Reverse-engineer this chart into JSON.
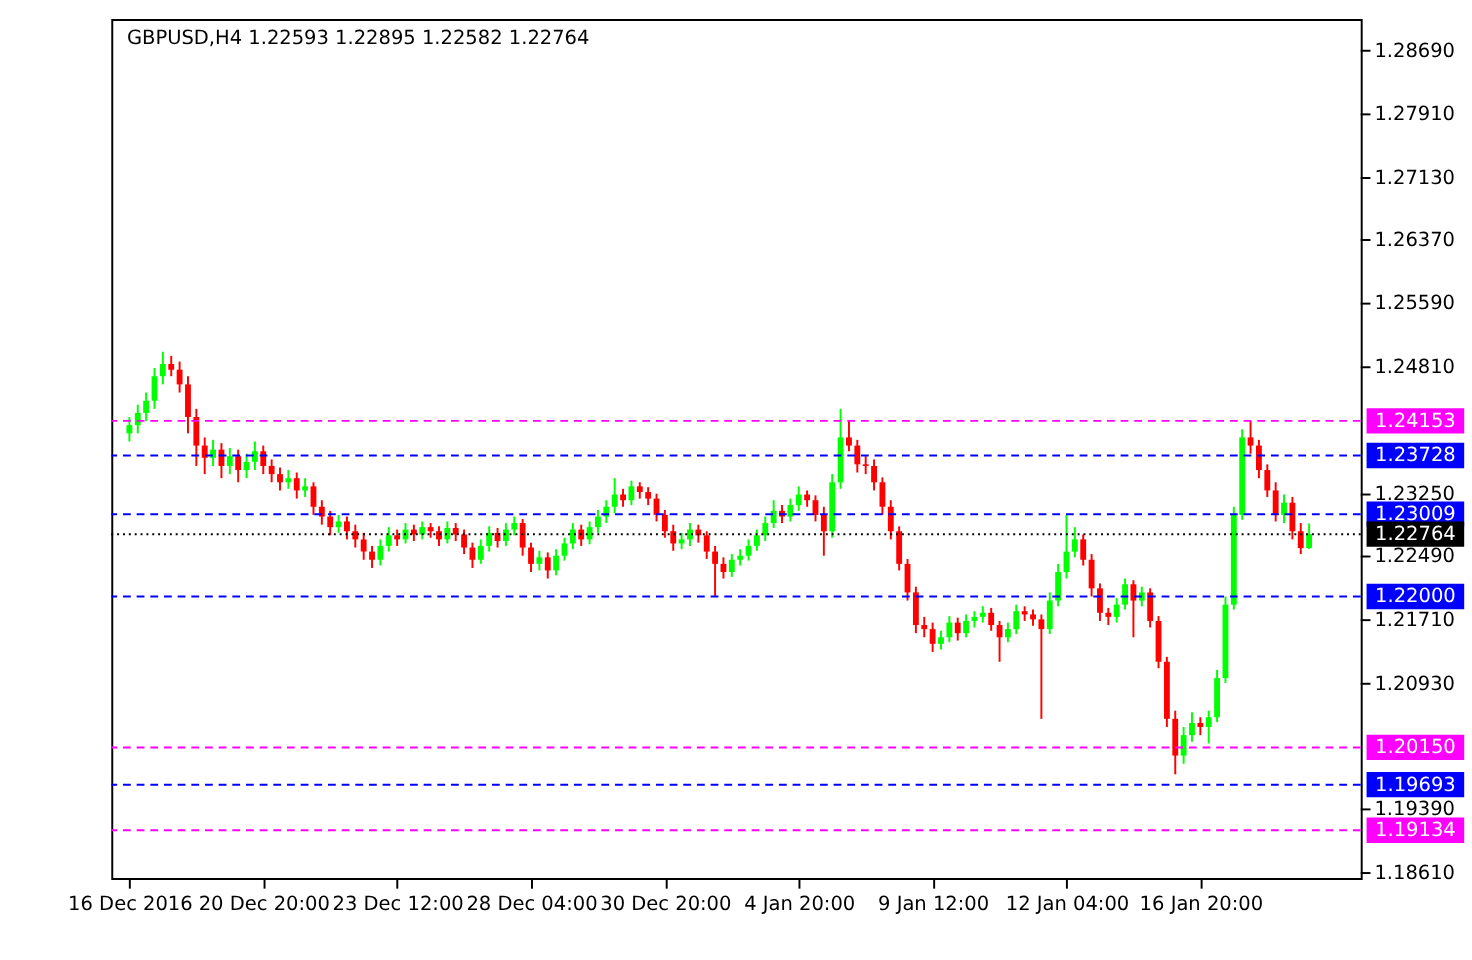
{
  "chart_data": {
    "type": "candlestick",
    "title": "GBPUSD,H4  1.22593 1.22895 1.22582 1.22764",
    "categories": [
      "16 Dec 2016",
      null,
      null,
      null,
      null,
      null,
      null,
      null,
      null,
      null,
      null,
      null,
      null,
      null,
      null,
      null,
      "20 Dec 20:00",
      null,
      null,
      null,
      null,
      null,
      null,
      null,
      null,
      null,
      null,
      null,
      null,
      null,
      null,
      null,
      "23 Dec 12:00",
      null,
      null,
      null,
      null,
      null,
      null,
      null,
      null,
      null,
      null,
      null,
      null,
      null,
      null,
      null,
      "28 Dec 04:00",
      null,
      null,
      null,
      null,
      null,
      null,
      null,
      null,
      null,
      null,
      null,
      null,
      null,
      null,
      null,
      "30 Dec 20:00",
      null,
      null,
      null,
      null,
      null,
      null,
      null,
      null,
      null,
      null,
      null,
      null,
      null,
      null,
      null,
      "4 Jan 20:00",
      null,
      null,
      null,
      null,
      null,
      null,
      null,
      null,
      null,
      null,
      null,
      null,
      null,
      null,
      null,
      "9 Jan 12:00",
      null,
      null,
      null,
      null,
      null,
      null,
      null,
      null,
      null,
      null,
      null,
      null,
      null,
      null,
      null,
      "12 Jan 04:00",
      null,
      null,
      null,
      null,
      null,
      null,
      null,
      null,
      null,
      null,
      null,
      null,
      null,
      null,
      null,
      "16 Jan 20:00",
      null,
      null,
      null,
      null,
      null,
      null,
      null,
      null,
      null,
      null,
      null,
      null,
      null
    ],
    "ohlc": [
      [
        1.24,
        1.242,
        1.239,
        1.241
      ],
      [
        1.241,
        1.2435,
        1.24,
        1.2425
      ],
      [
        1.2425,
        1.245,
        1.2415,
        1.244
      ],
      [
        1.244,
        1.248,
        1.243,
        1.247
      ],
      [
        1.247,
        1.25,
        1.246,
        1.2485
      ],
      [
        1.2485,
        1.2495,
        1.247,
        1.2478
      ],
      [
        1.2478,
        1.2488,
        1.245,
        1.246
      ],
      [
        1.246,
        1.247,
        1.24,
        1.242
      ],
      [
        1.242,
        1.243,
        1.236,
        1.2385
      ],
      [
        1.2385,
        1.2395,
        1.235,
        1.237
      ],
      [
        1.237,
        1.2392,
        1.236,
        1.238
      ],
      [
        1.238,
        1.2388,
        1.2345,
        1.236
      ],
      [
        1.236,
        1.2382,
        1.235,
        1.2372
      ],
      [
        1.2372,
        1.238,
        1.234,
        1.2355
      ],
      [
        1.2355,
        1.2375,
        1.2345,
        1.2365
      ],
      [
        1.2365,
        1.239,
        1.2355,
        1.2378
      ],
      [
        1.2378,
        1.2385,
        1.235,
        1.236
      ],
      [
        1.236,
        1.2368,
        1.234,
        1.235
      ],
      [
        1.235,
        1.2358,
        1.233,
        1.234
      ],
      [
        1.234,
        1.2355,
        1.2332,
        1.2345
      ],
      [
        1.2345,
        1.2352,
        1.232,
        1.233
      ],
      [
        1.233,
        1.2345,
        1.2322,
        1.2335
      ],
      [
        1.2335,
        1.234,
        1.23,
        1.231
      ],
      [
        1.231,
        1.2318,
        1.2288,
        1.2298
      ],
      [
        1.2298,
        1.2305,
        1.2275,
        1.2285
      ],
      [
        1.2285,
        1.23,
        1.2278,
        1.2292
      ],
      [
        1.2292,
        1.2298,
        1.227,
        1.228
      ],
      [
        1.228,
        1.2288,
        1.226,
        1.227
      ],
      [
        1.227,
        1.2278,
        1.2245,
        1.2255
      ],
      [
        1.2255,
        1.2262,
        1.2235,
        1.2245
      ],
      [
        1.2245,
        1.227,
        1.2238,
        1.2262
      ],
      [
        1.2262,
        1.2285,
        1.2255,
        1.2275
      ],
      [
        1.2275,
        1.2282,
        1.2262,
        1.227
      ],
      [
        1.227,
        1.229,
        1.2265,
        1.2282
      ],
      [
        1.2282,
        1.2288,
        1.2268,
        1.2276
      ],
      [
        1.2276,
        1.2292,
        1.227,
        1.2285
      ],
      [
        1.2285,
        1.229,
        1.2272,
        1.228
      ],
      [
        1.228,
        1.2286,
        1.2262,
        1.227
      ],
      [
        1.227,
        1.2292,
        1.2265,
        1.2284
      ],
      [
        1.2284,
        1.229,
        1.2268,
        1.2276
      ],
      [
        1.2276,
        1.2282,
        1.2252,
        1.226
      ],
      [
        1.226,
        1.2266,
        1.2235,
        1.2245
      ],
      [
        1.2245,
        1.227,
        1.224,
        1.2262
      ],
      [
        1.2262,
        1.2286,
        1.2255,
        1.2278
      ],
      [
        1.2278,
        1.2284,
        1.226,
        1.2268
      ],
      [
        1.2268,
        1.229,
        1.2262,
        1.2282
      ],
      [
        1.2282,
        1.2298,
        1.2275,
        1.229
      ],
      [
        1.229,
        1.2295,
        1.225,
        1.226
      ],
      [
        1.226,
        1.2266,
        1.223,
        1.224
      ],
      [
        1.224,
        1.2256,
        1.2232,
        1.2248
      ],
      [
        1.2248,
        1.2254,
        1.2222,
        1.2232
      ],
      [
        1.2232,
        1.2258,
        1.2226,
        1.225
      ],
      [
        1.225,
        1.2272,
        1.2244,
        1.2265
      ],
      [
        1.2265,
        1.229,
        1.2258,
        1.2282
      ],
      [
        1.2282,
        1.2288,
        1.2262,
        1.227
      ],
      [
        1.227,
        1.2292,
        1.2264,
        1.2285
      ],
      [
        1.2285,
        1.2306,
        1.2278,
        1.2298
      ],
      [
        1.2298,
        1.2318,
        1.229,
        1.231
      ],
      [
        1.231,
        1.2345,
        1.2302,
        1.2325
      ],
      [
        1.2325,
        1.2332,
        1.231,
        1.2318
      ],
      [
        1.2318,
        1.2342,
        1.2312,
        1.2335
      ],
      [
        1.2335,
        1.234,
        1.232,
        1.2328
      ],
      [
        1.2328,
        1.2334,
        1.2312,
        1.232
      ],
      [
        1.232,
        1.2326,
        1.2292,
        1.23
      ],
      [
        1.23,
        1.2306,
        1.2272,
        1.228
      ],
      [
        1.228,
        1.2288,
        1.2256,
        1.2265
      ],
      [
        1.2265,
        1.2278,
        1.2258,
        1.227
      ],
      [
        1.227,
        1.229,
        1.2262,
        1.2282
      ],
      [
        1.2282,
        1.2288,
        1.2266,
        1.2275
      ],
      [
        1.2275,
        1.228,
        1.2246,
        1.2255
      ],
      [
        1.2255,
        1.2262,
        1.22,
        1.224
      ],
      [
        1.224,
        1.2248,
        1.2222,
        1.223
      ],
      [
        1.223,
        1.2252,
        1.2224,
        1.2245
      ],
      [
        1.2245,
        1.2258,
        1.2238,
        1.225
      ],
      [
        1.225,
        1.227,
        1.2244,
        1.2262
      ],
      [
        1.2262,
        1.2282,
        1.2256,
        1.2275
      ],
      [
        1.2275,
        1.2298,
        1.2268,
        1.229
      ],
      [
        1.229,
        1.2318,
        1.2284,
        1.2305
      ],
      [
        1.2305,
        1.2312,
        1.229,
        1.2298
      ],
      [
        1.2298,
        1.232,
        1.2292,
        1.2312
      ],
      [
        1.2312,
        1.2335,
        1.2305,
        1.2325
      ],
      [
        1.2325,
        1.233,
        1.231,
        1.2318
      ],
      [
        1.2318,
        1.2324,
        1.2292,
        1.23
      ],
      [
        1.23,
        1.231,
        1.225,
        1.228
      ],
      [
        1.228,
        1.235,
        1.2272,
        1.234
      ],
      [
        1.234,
        1.243,
        1.2332,
        1.2395
      ],
      [
        1.2395,
        1.2415,
        1.2378,
        1.2385
      ],
      [
        1.2385,
        1.2392,
        1.2352,
        1.2362
      ],
      [
        1.2362,
        1.2372,
        1.235,
        1.236
      ],
      [
        1.236,
        1.2368,
        1.233,
        1.234
      ],
      [
        1.234,
        1.2346,
        1.23,
        1.231
      ],
      [
        1.231,
        1.2318,
        1.227,
        1.228
      ],
      [
        1.228,
        1.2286,
        1.2232,
        1.224
      ],
      [
        1.224,
        1.2246,
        1.2195,
        1.2205
      ],
      [
        1.2205,
        1.2212,
        1.2155,
        1.2165
      ],
      [
        1.2165,
        1.2175,
        1.215,
        1.216
      ],
      [
        1.216,
        1.2168,
        1.2132,
        1.2142
      ],
      [
        1.2142,
        1.2158,
        1.2135,
        1.215
      ],
      [
        1.215,
        1.2176,
        1.2144,
        1.2168
      ],
      [
        1.2168,
        1.2174,
        1.2146,
        1.2155
      ],
      [
        1.2155,
        1.2178,
        1.215,
        1.217
      ],
      [
        1.217,
        1.2182,
        1.2162,
        1.2175
      ],
      [
        1.2175,
        1.2188,
        1.2168,
        1.218
      ],
      [
        1.218,
        1.2186,
        1.2158,
        1.2165
      ],
      [
        1.2165,
        1.217,
        1.212,
        1.215
      ],
      [
        1.215,
        1.2168,
        1.2144,
        1.216
      ],
      [
        1.216,
        1.219,
        1.2154,
        1.2182
      ],
      [
        1.2182,
        1.2188,
        1.217,
        1.2178
      ],
      [
        1.2178,
        1.2184,
        1.2164,
        1.2172
      ],
      [
        1.2172,
        1.2178,
        1.205,
        1.216
      ],
      [
        1.216,
        1.2205,
        1.2154,
        1.2195
      ],
      [
        1.2195,
        1.224,
        1.2188,
        1.223
      ],
      [
        1.223,
        1.23,
        1.2222,
        1.2255
      ],
      [
        1.2255,
        1.2285,
        1.2248,
        1.227
      ],
      [
        1.227,
        1.2276,
        1.2238,
        1.2245
      ],
      [
        1.2245,
        1.2252,
        1.22,
        1.221
      ],
      [
        1.221,
        1.2216,
        1.217,
        1.218
      ],
      [
        1.218,
        1.2186,
        1.2165,
        1.2175
      ],
      [
        1.2175,
        1.2198,
        1.2168,
        1.219
      ],
      [
        1.219,
        1.2222,
        1.2184,
        1.2215
      ],
      [
        1.2215,
        1.222,
        1.215,
        1.2195
      ],
      [
        1.2195,
        1.2212,
        1.2188,
        1.2205
      ],
      [
        1.2205,
        1.221,
        1.2162,
        1.217
      ],
      [
        1.217,
        1.2176,
        1.2112,
        1.212
      ],
      [
        1.212,
        1.2126,
        1.204,
        1.205
      ],
      [
        1.205,
        1.206,
        1.1982,
        1.2005
      ],
      [
        1.2005,
        1.204,
        1.1995,
        1.203
      ],
      [
        1.203,
        1.2058,
        1.2022,
        1.2045
      ],
      [
        1.2045,
        1.2052,
        1.203,
        1.204
      ],
      [
        1.204,
        1.206,
        1.202,
        1.2052
      ],
      [
        1.2052,
        1.211,
        1.2046,
        1.21
      ],
      [
        1.21,
        1.22,
        1.2094,
        1.219
      ],
      [
        1.219,
        1.231,
        1.2184,
        1.23
      ],
      [
        1.23,
        1.2405,
        1.2294,
        1.2395
      ],
      [
        1.2395,
        1.2415,
        1.2375,
        1.2385
      ],
      [
        1.2385,
        1.2392,
        1.2345,
        1.2355
      ],
      [
        1.2355,
        1.2362,
        1.2322,
        1.233
      ],
      [
        1.233,
        1.234,
        1.2292,
        1.23
      ],
      [
        1.23,
        1.2325,
        1.229,
        1.2315
      ],
      [
        1.2315,
        1.2322,
        1.227,
        1.228
      ],
      [
        1.228,
        1.229,
        1.2252,
        1.22593
      ],
      [
        1.22593,
        1.22895,
        1.22582,
        1.22764
      ]
    ],
    "colors": [
      "#00ff00",
      "#00ff00",
      "#00ff00",
      "#00ff00",
      "#00ff00",
      "#ff0000",
      "#ff0000",
      "#ff0000",
      "#ff0000",
      "#ff0000",
      "#00ff00",
      "#ff0000",
      "#00ff00",
      "#ff0000",
      "#00ff00",
      "#00ff00",
      "#ff0000",
      "#ff0000",
      "#ff0000",
      "#00ff00",
      "#ff0000",
      "#00ff00",
      "#ff0000",
      "#ff0000",
      "#ff0000",
      "#00ff00",
      "#ff0000",
      "#ff0000",
      "#ff0000",
      "#ff0000",
      "#00ff00",
      "#00ff00",
      "#ff0000",
      "#00ff00",
      "#ff0000",
      "#00ff00",
      "#ff0000",
      "#ff0000",
      "#00ff00",
      "#ff0000",
      "#ff0000",
      "#ff0000",
      "#00ff00",
      "#00ff00",
      "#ff0000",
      "#00ff00",
      "#00ff00",
      "#ff0000",
      "#ff0000",
      "#00ff00",
      "#ff0000",
      "#00ff00",
      "#00ff00",
      "#00ff00",
      "#ff0000",
      "#00ff00",
      "#00ff00",
      "#00ff00",
      "#00ff00",
      "#ff0000",
      "#00ff00",
      "#ff0000",
      "#ff0000",
      "#ff0000",
      "#ff0000",
      "#ff0000",
      "#00ff00",
      "#00ff00",
      "#ff0000",
      "#ff0000",
      "#ff0000",
      "#ff0000",
      "#00ff00",
      "#00ff00",
      "#00ff00",
      "#00ff00",
      "#00ff00",
      "#00ff00",
      "#ff0000",
      "#00ff00",
      "#00ff00",
      "#ff0000",
      "#ff0000",
      "#ff0000",
      "#00ff00",
      "#00ff00",
      "#ff0000",
      "#ff0000",
      "#ff0000",
      "#ff0000",
      "#ff0000",
      "#ff0000",
      "#ff0000",
      "#ff0000",
      "#ff0000",
      "#ff0000",
      "#ff0000",
      "#00ff00",
      "#00ff00",
      "#ff0000",
      "#00ff00",
      "#00ff00",
      "#00ff00",
      "#ff0000",
      "#ff0000",
      "#00ff00",
      "#00ff00",
      "#ff0000",
      "#ff0000",
      "#ff0000",
      "#00ff00",
      "#00ff00",
      "#00ff00",
      "#00ff00",
      "#ff0000",
      "#ff0000",
      "#ff0000",
      "#ff0000",
      "#00ff00",
      "#00ff00",
      "#ff0000",
      "#00ff00",
      "#ff0000",
      "#ff0000",
      "#ff0000",
      "#ff0000",
      "#00ff00",
      "#00ff00",
      "#ff0000",
      "#00ff00",
      "#00ff00",
      "#00ff00",
      "#00ff00",
      "#00ff00",
      "#ff0000",
      "#ff0000",
      "#ff0000",
      "#ff0000",
      "#00ff00",
      "#ff0000",
      "#ff0000",
      "#00ff00"
    ],
    "ylim": [
      1.1855,
      1.2908
    ],
    "yticks": [
      {
        "value": 1.1861,
        "label": "1.18610"
      },
      {
        "value": 1.1939,
        "label": "1.19390"
      },
      {
        "value": 1.2093,
        "label": "1.20930"
      },
      {
        "value": 1.2171,
        "label": "1.21710"
      },
      {
        "value": 1.2249,
        "label": "1.22490"
      },
      {
        "value": 1.2325,
        "label": "1.23250"
      },
      {
        "value": 1.2481,
        "label": "1.24810"
      },
      {
        "value": 1.2559,
        "label": "1.25590"
      },
      {
        "value": 1.2637,
        "label": "1.26370"
      },
      {
        "value": 1.2713,
        "label": "1.27130"
      },
      {
        "value": 1.2791,
        "label": "1.27910"
      },
      {
        "value": 1.2869,
        "label": "1.28690"
      }
    ],
    "ref_lines": [
      {
        "axis": "y",
        "value": 1.24153,
        "label": "1.24153",
        "color": "#ff00ff",
        "line_style": "dashed"
      },
      {
        "axis": "y",
        "value": 1.23728,
        "label": "1.23728",
        "color": "#0000ff",
        "line_style": "dashed"
      },
      {
        "axis": "y",
        "value": 1.23009,
        "label": "1.23009",
        "color": "#0000ff",
        "line_style": "dashed"
      },
      {
        "axis": "y",
        "value": 1.22764,
        "label": "1.22764",
        "color": "#000000",
        "line_style": "dotted"
      },
      {
        "axis": "y",
        "value": 1.22,
        "label": "1.22000",
        "color": "#0000ff",
        "line_style": "dashed"
      },
      {
        "axis": "y",
        "value": 1.2015,
        "label": "1.20150",
        "color": "#ff00ff",
        "line_style": "dashed"
      },
      {
        "axis": "y",
        "value": 1.19693,
        "label": "1.19693",
        "color": "#0000ff",
        "line_style": "dashed"
      },
      {
        "axis": "y",
        "value": 1.19134,
        "label": "1.19134",
        "color": "#ff00ff",
        "line_style": "dashed"
      }
    ],
    "grid": false
  }
}
